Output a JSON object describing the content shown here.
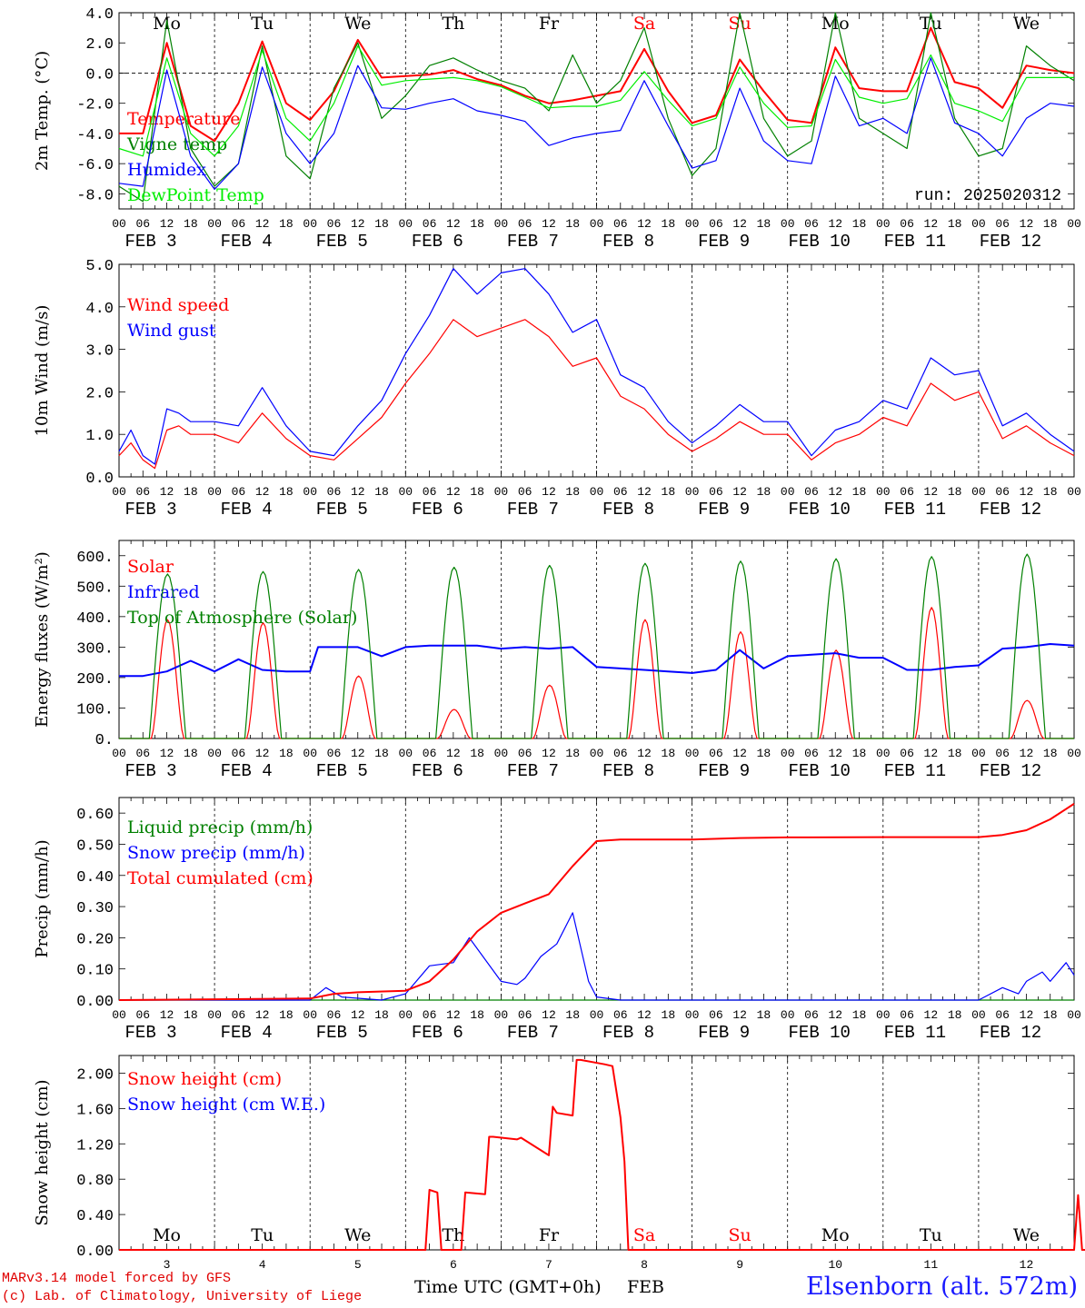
{
  "footer": {
    "credit_line1": "MARv3.14 model forced by GFS",
    "credit_line2": "(c) Lab. of Climatology, University of Liege",
    "station": "Elsenborn (alt. 572m)",
    "xaxis_title": "Time UTC (GMT+0h)",
    "xaxis_month": "FEB"
  },
  "colors": {
    "red": "#ff0000",
    "green": "#008000",
    "blue": "#0000ff",
    "lime": "#00ee00"
  },
  "time_axis": {
    "hour_labels": [
      "00",
      "06",
      "12",
      "18"
    ],
    "date_labels": [
      "FEB  3",
      "FEB  4",
      "FEB  5",
      "FEB  6",
      "FEB  7",
      "FEB  8",
      "FEB  9",
      "FEB 10",
      "FEB 11",
      "FEB 12"
    ],
    "weekdays": [
      "Mo",
      "Tu",
      "We",
      "Th",
      "Fr",
      "Sa",
      "Su",
      "Mo",
      "Tu",
      "We"
    ],
    "weekday_colors": [
      "#000",
      "#000",
      "#000",
      "#000",
      "#000",
      "#ff0000",
      "#ff0000",
      "#000",
      "#000",
      "#000"
    ],
    "day_numbers": [
      "3",
      "4",
      "5",
      "6",
      "7",
      "8",
      "9",
      "10",
      "11",
      "12"
    ]
  },
  "chart_data": [
    {
      "type": "line",
      "ylabel": "2m Temp. (°C)",
      "ylim": [
        -9,
        4
      ],
      "yticks": [
        "4.0",
        "2.0",
        "0.0",
        "-2.0",
        "-4.0",
        "-6.0",
        "-8.0"
      ],
      "ytick_values": [
        4,
        2,
        0,
        -2,
        -4,
        -6,
        -8
      ],
      "run_label": "run: 2025020312",
      "zero_line": true,
      "series": [
        {
          "name": "Temperature",
          "color": "#ff0000",
          "x": [
            0,
            6,
            12,
            18,
            24,
            30,
            36,
            42,
            48,
            54,
            60,
            66,
            72,
            78,
            84,
            90,
            96,
            102,
            108,
            114,
            120,
            126,
            132,
            138,
            144,
            150,
            156,
            162,
            168,
            174,
            180,
            186,
            192,
            198,
            204,
            210,
            216,
            222,
            228,
            234,
            240
          ],
          "values": [
            -4.0,
            -4.0,
            2.0,
            -3.5,
            -4.5,
            -2.0,
            2.1,
            -2.0,
            -3.1,
            -1.2,
            2.2,
            -0.3,
            -0.2,
            -0.1,
            0.2,
            -0.4,
            -0.8,
            -1.5,
            -2.0,
            -1.8,
            -1.5,
            -1.2,
            1.6,
            -1.2,
            -3.3,
            -2.8,
            0.9,
            -1.2,
            -3.1,
            -3.3,
            1.7,
            -1.0,
            -1.2,
            -1.2,
            3.0,
            -0.6,
            -1.0,
            -2.3,
            0.5,
            0.2,
            0.0
          ]
        },
        {
          "name": "Vigne temp",
          "color": "#008000",
          "x": [
            0,
            6,
            12,
            18,
            24,
            30,
            36,
            42,
            48,
            54,
            60,
            66,
            72,
            78,
            84,
            90,
            96,
            102,
            108,
            114,
            120,
            126,
            132,
            138,
            144,
            150,
            156,
            162,
            168,
            174,
            180,
            186,
            192,
            198,
            204,
            210,
            216,
            222,
            228,
            234,
            240
          ],
          "values": [
            -7.5,
            -8.5,
            3.5,
            -5.0,
            -7.5,
            -6.0,
            1.8,
            -5.5,
            -7.0,
            -1.0,
            2.0,
            -3.0,
            -1.5,
            0.5,
            1.0,
            0.2,
            -0.5,
            -1.0,
            -2.5,
            1.2,
            -2.0,
            -0.5,
            3.0,
            -3.0,
            -6.8,
            -5.0,
            4.0,
            -3.0,
            -5.5,
            -4.5,
            4.0,
            -3.0,
            -4.0,
            -5.0,
            4.0,
            -3.0,
            -5.5,
            -5.0,
            1.8,
            0.5,
            -0.5
          ]
        },
        {
          "name": "Humidex",
          "color": "#0000ff",
          "x": [
            0,
            6,
            12,
            18,
            24,
            30,
            36,
            42,
            48,
            54,
            60,
            66,
            72,
            78,
            84,
            90,
            96,
            102,
            108,
            114,
            120,
            126,
            132,
            138,
            144,
            150,
            156,
            162,
            168,
            174,
            180,
            186,
            192,
            198,
            204,
            210,
            216,
            222,
            228,
            234,
            240
          ],
          "values": [
            -7.3,
            -7.5,
            0.2,
            -5.5,
            -7.7,
            -6.0,
            0.4,
            -4.0,
            -6.0,
            -4.0,
            0.5,
            -2.3,
            -2.4,
            -2.0,
            -1.7,
            -2.5,
            -2.8,
            -3.2,
            -4.8,
            -4.3,
            -4.0,
            -3.8,
            -0.5,
            -3.5,
            -6.3,
            -5.8,
            -1.0,
            -4.5,
            -5.8,
            -6.0,
            -0.2,
            -3.5,
            -3.0,
            -4.0,
            1.0,
            -3.3,
            -4.0,
            -5.5,
            -3.0,
            -2.0,
            -2.2
          ]
        },
        {
          "name": "DewPoint Temp",
          "color": "#00ee00",
          "x": [
            0,
            6,
            12,
            18,
            24,
            30,
            36,
            42,
            48,
            54,
            60,
            66,
            72,
            78,
            84,
            90,
            96,
            102,
            108,
            114,
            120,
            126,
            132,
            138,
            144,
            150,
            156,
            162,
            168,
            174,
            180,
            186,
            192,
            198,
            204,
            210,
            216,
            222,
            228,
            234,
            240
          ],
          "values": [
            -5.0,
            -5.5,
            1.0,
            -4.0,
            -5.5,
            -3.5,
            1.5,
            -3.0,
            -4.5,
            -2.0,
            1.8,
            -0.8,
            -0.5,
            -0.4,
            -0.3,
            -0.5,
            -0.9,
            -1.6,
            -2.3,
            -2.2,
            -2.2,
            -1.8,
            0.1,
            -1.8,
            -3.5,
            -3.0,
            0.4,
            -2.0,
            -3.6,
            -3.5,
            0.9,
            -1.6,
            -2.0,
            -1.7,
            1.2,
            -2.0,
            -2.5,
            -3.2,
            -0.3,
            -0.3,
            -0.3
          ]
        }
      ]
    },
    {
      "type": "line",
      "ylabel": "10m Wind (m/s)",
      "ylim": [
        0,
        5
      ],
      "yticks": [
        "5.0",
        "4.0",
        "3.0",
        "2.0",
        "1.0",
        "0.0"
      ],
      "ytick_values": [
        5,
        4,
        3,
        2,
        1,
        0
      ],
      "series": [
        {
          "name": "Wind speed",
          "color": "#ff0000",
          "x": [
            0,
            3,
            6,
            9,
            12,
            15,
            18,
            24,
            30,
            36,
            42,
            48,
            54,
            60,
            66,
            72,
            78,
            84,
            90,
            96,
            102,
            108,
            114,
            120,
            126,
            132,
            138,
            144,
            150,
            156,
            162,
            168,
            174,
            180,
            186,
            192,
            198,
            204,
            210,
            216,
            222,
            228,
            234,
            240
          ],
          "values": [
            0.5,
            0.8,
            0.4,
            0.2,
            1.1,
            1.2,
            1.0,
            1.0,
            0.8,
            1.5,
            0.9,
            0.5,
            0.4,
            0.9,
            1.4,
            2.2,
            2.9,
            3.7,
            3.3,
            3.5,
            3.7,
            3.3,
            2.6,
            2.8,
            1.9,
            1.6,
            1.0,
            0.6,
            0.9,
            1.3,
            1.0,
            1.0,
            0.4,
            0.8,
            1.0,
            1.4,
            1.2,
            2.2,
            1.8,
            2.0,
            0.9,
            1.2,
            0.8,
            0.5
          ]
        },
        {
          "name": "Wind gust",
          "color": "#0000ff",
          "x": [
            0,
            3,
            6,
            9,
            12,
            15,
            18,
            24,
            30,
            36,
            42,
            48,
            54,
            60,
            66,
            72,
            78,
            84,
            90,
            96,
            102,
            108,
            114,
            120,
            126,
            132,
            138,
            144,
            150,
            156,
            162,
            168,
            174,
            180,
            186,
            192,
            198,
            204,
            210,
            216,
            222,
            228,
            234,
            240
          ],
          "values": [
            0.6,
            1.1,
            0.5,
            0.3,
            1.6,
            1.5,
            1.3,
            1.3,
            1.2,
            2.1,
            1.2,
            0.6,
            0.5,
            1.2,
            1.8,
            2.9,
            3.8,
            4.9,
            4.3,
            4.8,
            4.9,
            4.3,
            3.4,
            3.7,
            2.4,
            2.1,
            1.3,
            0.8,
            1.2,
            1.7,
            1.3,
            1.3,
            0.5,
            1.1,
            1.3,
            1.8,
            1.6,
            2.8,
            2.4,
            2.5,
            1.2,
            1.5,
            1.0,
            0.6
          ]
        }
      ]
    },
    {
      "type": "line",
      "ylabel": "Energy fluxes (W/m²)",
      "ylim": [
        0,
        650
      ],
      "yticks": [
        "600.",
        "500.",
        "400.",
        "300.",
        "200.",
        "100.",
        "0."
      ],
      "ytick_values": [
        600,
        500,
        400,
        300,
        200,
        100,
        0
      ],
      "diurnal_peaks": {
        "Solar": [
          390,
          380,
          205,
          95,
          175,
          390,
          350,
          290,
          430,
          125
        ],
        "Top of Atmosphere (Solar)": [
          540,
          548,
          555,
          562,
          568,
          575,
          582,
          590,
          597,
          605
        ]
      },
      "series": [
        {
          "name": "Solar",
          "color": "#ff0000"
        },
        {
          "name": "Infrared",
          "color": "#0000ff",
          "x": [
            0,
            6,
            12,
            18,
            24,
            30,
            36,
            42,
            48,
            50,
            54,
            60,
            66,
            72,
            78,
            84,
            90,
            96,
            102,
            108,
            114,
            120,
            126,
            132,
            138,
            144,
            150,
            156,
            162,
            168,
            174,
            180,
            186,
            192,
            198,
            204,
            210,
            216,
            222,
            228,
            234,
            240
          ],
          "values": [
            205,
            205,
            220,
            255,
            220,
            260,
            225,
            220,
            220,
            300,
            300,
            300,
            270,
            300,
            305,
            305,
            305,
            295,
            300,
            295,
            300,
            235,
            230,
            225,
            220,
            215,
            225,
            290,
            230,
            270,
            275,
            280,
            265,
            265,
            225,
            225,
            235,
            240,
            295,
            300,
            310,
            305
          ]
        },
        {
          "name": "Top of Atmosphere (Solar)",
          "color": "#008000"
        }
      ]
    },
    {
      "type": "line",
      "ylabel": "Precip (mm/h)",
      "ylim": [
        0,
        0.65
      ],
      "yticks": [
        "0.60",
        "0.50",
        "0.40",
        "0.30",
        "0.20",
        "0.10",
        "0.00"
      ],
      "ytick_values": [
        0.6,
        0.5,
        0.4,
        0.3,
        0.2,
        0.1,
        0
      ],
      "series": [
        {
          "name": "Liquid precip (mm/h)",
          "color": "#008000",
          "x": [
            0,
            240
          ],
          "values": [
            0,
            0
          ]
        },
        {
          "name": "Snow precip (mm/h)",
          "color": "#0000ff",
          "x": [
            0,
            48,
            52,
            56,
            66,
            72,
            78,
            84,
            88,
            92,
            96,
            100,
            102,
            106,
            110,
            114,
            118,
            120,
            126,
            132,
            156,
            180,
            216,
            222,
            226,
            228,
            232,
            234,
            238,
            240
          ],
          "values": [
            0,
            0,
            0.04,
            0.01,
            0,
            0.02,
            0.11,
            0.12,
            0.2,
            0.13,
            0.06,
            0.05,
            0.07,
            0.14,
            0.18,
            0.28,
            0.06,
            0.01,
            0,
            0,
            0,
            0,
            0,
            0.04,
            0.02,
            0.06,
            0.09,
            0.06,
            0.12,
            0.08
          ]
        },
        {
          "name": "Total cumulated (cm)",
          "color": "#ff0000",
          "x": [
            0,
            48,
            54,
            60,
            72,
            78,
            84,
            90,
            96,
            102,
            108,
            114,
            120,
            126,
            132,
            144,
            156,
            168,
            192,
            216,
            222,
            228,
            234,
            240
          ],
          "values": [
            0,
            0.005,
            0.02,
            0.025,
            0.03,
            0.06,
            0.13,
            0.22,
            0.28,
            0.31,
            0.34,
            0.43,
            0.51,
            0.515,
            0.515,
            0.515,
            0.52,
            0.522,
            0.523,
            0.523,
            0.53,
            0.545,
            0.58,
            0.63
          ]
        }
      ]
    },
    {
      "type": "line",
      "ylabel": "Snow height (cm)",
      "ylim": [
        0,
        2.2
      ],
      "yticks": [
        "2.00",
        "1.60",
        "1.20",
        "0.80",
        "0.40",
        "0.00"
      ],
      "ytick_values": [
        2.0,
        1.6,
        1.2,
        0.8,
        0.4,
        0
      ],
      "series": [
        {
          "name": "Snow height (cm)",
          "color": "#ff0000",
          "x": [
            0,
            77,
            78,
            80,
            81,
            86,
            87,
            92,
            93,
            94,
            100,
            101,
            108,
            109,
            110,
            114,
            115,
            116,
            122,
            124,
            126,
            127,
            128,
            240,
            241,
            242,
            243,
            244
          ],
          "values": [
            0,
            0,
            0.68,
            0.65,
            0,
            0,
            0.65,
            0.63,
            1.28,
            1.28,
            1.25,
            1.27,
            1.07,
            1.62,
            1.55,
            1.52,
            2.15,
            2.15,
            2.1,
            2.08,
            1.5,
            1.0,
            0,
            0,
            0.62,
            0,
            0,
            0
          ]
        },
        {
          "name": "Snow height (cm W.E.)",
          "color": "#0000ff"
        }
      ]
    }
  ]
}
